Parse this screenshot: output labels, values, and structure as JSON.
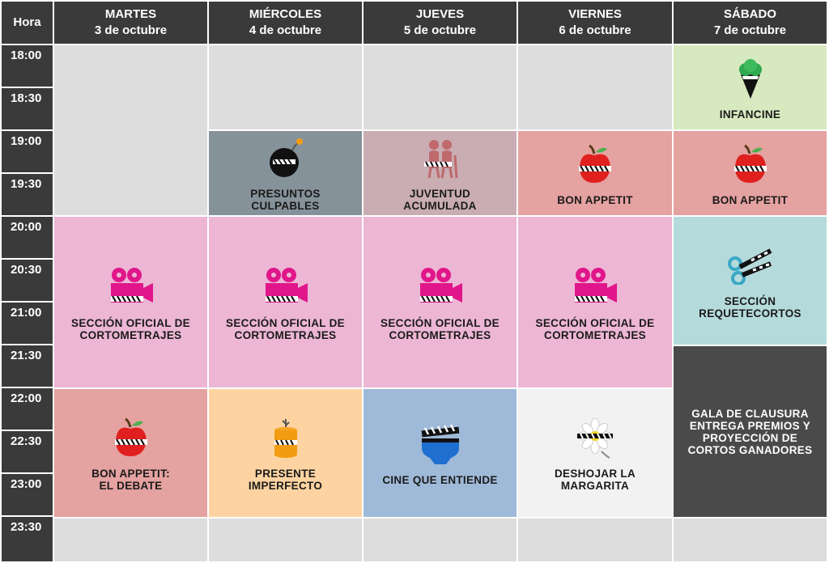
{
  "header": {
    "hour_label": "Hora",
    "days": [
      {
        "name": "MARTES",
        "date": "3 de octubre"
      },
      {
        "name": "MIÉRCOLES",
        "date": "4 de octubre"
      },
      {
        "name": "JUEVES",
        "date": "5 de octubre"
      },
      {
        "name": "VIERNES",
        "date": "6 de octubre"
      },
      {
        "name": "SÁBADO",
        "date": "7 de octubre"
      }
    ]
  },
  "times": [
    "18:00",
    "18:30",
    "19:00",
    "19:30",
    "20:00",
    "20:30",
    "21:00",
    "21:30",
    "22:00",
    "22:30",
    "23:00",
    "23:30"
  ],
  "events": [
    {
      "label": "INFANCINE",
      "icon": "ice-cream-clapper-icon",
      "color": "#d6e9bf"
    },
    {
      "label": "PRESUNTOS\nCULPABLES",
      "icon": "bomb-clapper-icon",
      "color": "#86929a"
    },
    {
      "label": "JUVENTUD\nACUMULADA",
      "icon": "elderly-couple-icon",
      "color": "#c9adb2"
    },
    {
      "label": "BON APPETIT",
      "icon": "apple-clapper-icon",
      "color": "#e4a2a0"
    },
    {
      "label": "BON APPETIT",
      "icon": "apple-clapper-icon",
      "color": "#e4a2a0"
    },
    {
      "label": "SECCIÓN OFICIAL DE\nCORTOMETRAJES",
      "icon": "movie-camera-icon",
      "color": "#ecb6d4"
    },
    {
      "label": "SECCIÓN OFICIAL DE\nCORTOMETRAJES",
      "icon": "movie-camera-icon",
      "color": "#ecb6d4"
    },
    {
      "label": "SECCIÓN OFICIAL DE\nCORTOMETRAJES",
      "icon": "movie-camera-icon",
      "color": "#ecb6d4"
    },
    {
      "label": "SECCIÓN OFICIAL DE\nCORTOMETRAJES",
      "icon": "movie-camera-icon",
      "color": "#ecb6d4"
    },
    {
      "label": "SECCIÓN\nREQUETECORTOS",
      "icon": "scissors-clapper-icon",
      "color": "#b5dadc"
    },
    {
      "label": "GALA DE CLAUSURA\nENTREGA PREMIOS Y\nPROYECCIÓN DE\nCORTOS GANADORES",
      "icon": "",
      "color": "#4a4a4a"
    },
    {
      "label": "BON APPETIT:\nEL DEBATE",
      "icon": "apple-clapper-icon",
      "color": "#e4a2a0"
    },
    {
      "label": "PRESENTE\nIMPERFECTO",
      "icon": "candle-clapper-icon",
      "color": "#fdd4a1"
    },
    {
      "label": "CINE QUE ENTIENDE",
      "icon": "clapper-heart-icon",
      "color": "#9fbad8"
    },
    {
      "label": "DESHOJAR LA\nMARGARITA",
      "icon": "daisy-clapper-icon",
      "color": "#f2f2f2"
    }
  ]
}
